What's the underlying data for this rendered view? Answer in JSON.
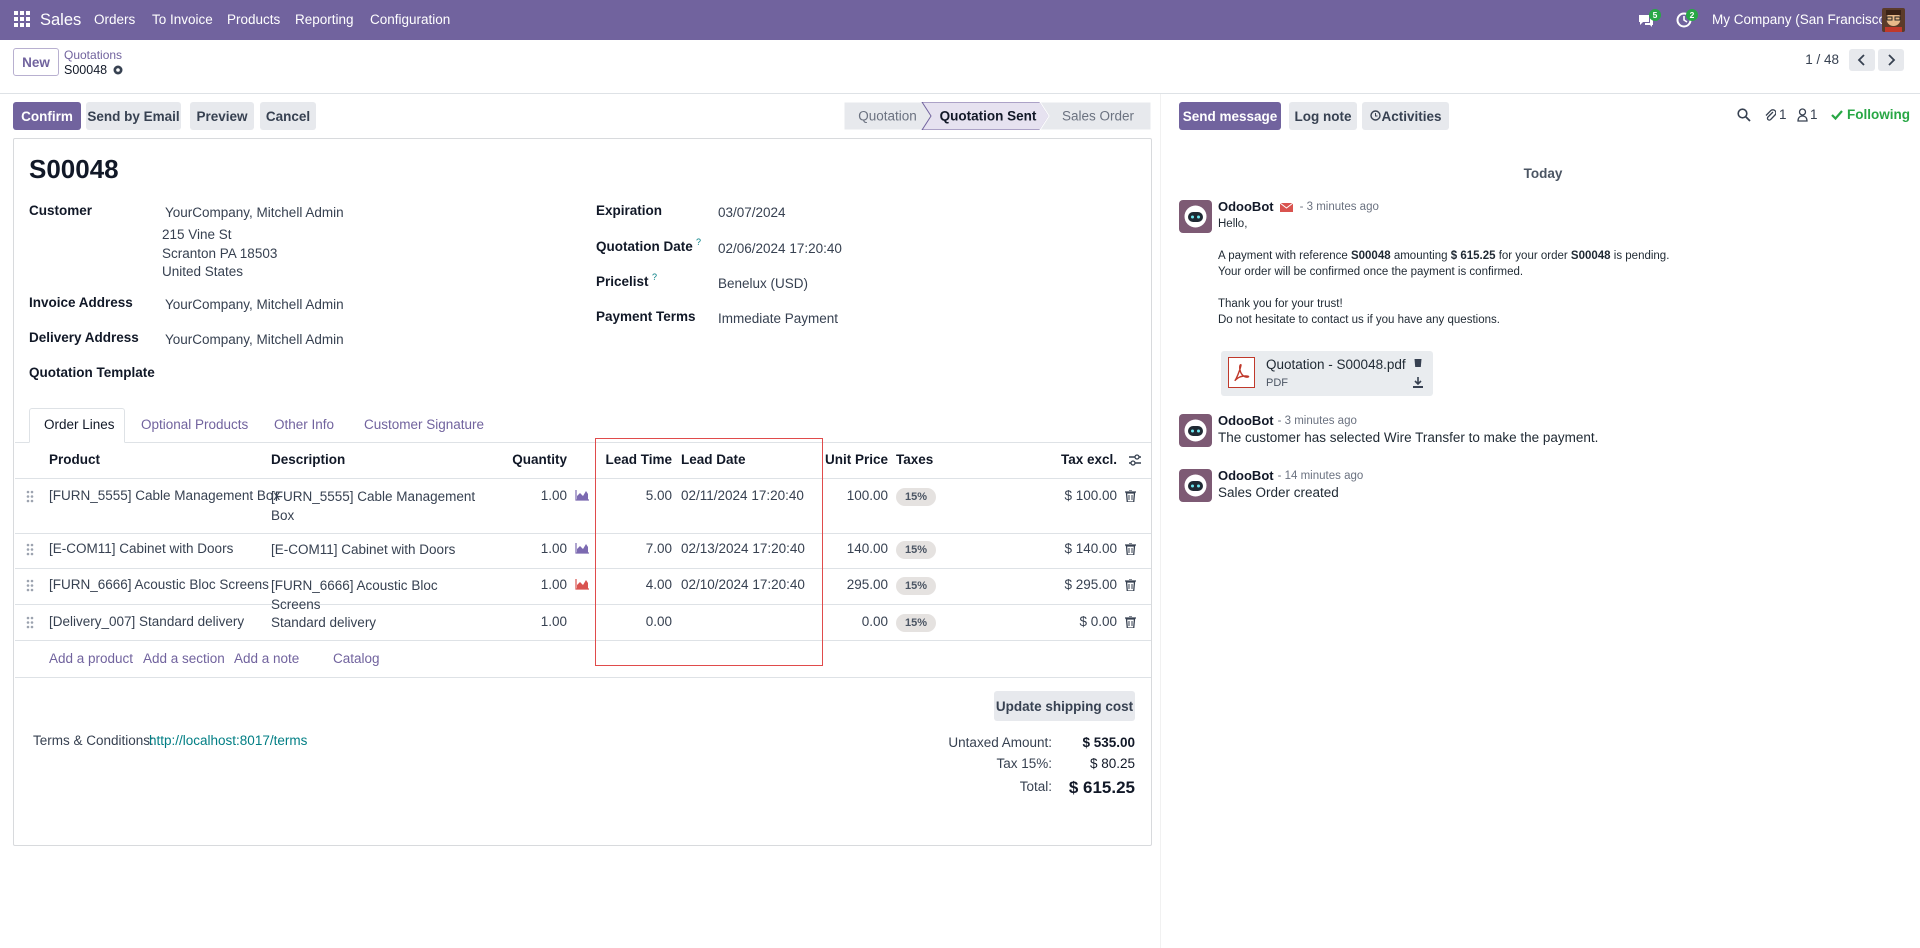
{
  "navbar": {
    "app": "Sales",
    "menu": [
      "Orders",
      "To Invoice",
      "Products",
      "Reporting",
      "Configuration"
    ],
    "message_badge": "5",
    "activity_badge": "2",
    "company": "My Company (San Francisco)"
  },
  "control_panel": {
    "new_button": "New",
    "breadcrumb": "Quotations",
    "record": "S00048",
    "pager": "1 / 48"
  },
  "action_buttons": [
    "Confirm",
    "Send by Email",
    "Preview",
    "Cancel"
  ],
  "statusbar": {
    "stages": [
      "Quotation",
      "Quotation Sent",
      "Sales Order"
    ],
    "current": 1
  },
  "form": {
    "name": "S00048",
    "customer": {
      "label": "Customer",
      "lines": [
        "YourCompany, Mitchell Admin",
        "215 Vine St",
        "Scranton PA 18503",
        "United States"
      ]
    },
    "invoice_address": {
      "label": "Invoice Address",
      "value": "YourCompany, Mitchell Admin"
    },
    "delivery_address": {
      "label": "Delivery Address",
      "value": "YourCompany, Mitchell Admin"
    },
    "quotation_template": {
      "label": "Quotation Template"
    },
    "expiration": {
      "label": "Expiration",
      "value": "03/07/2024"
    },
    "quotation_date": {
      "label": "Quotation Date",
      "help": "?",
      "value": "02/06/2024 17:20:40"
    },
    "pricelist": {
      "label": "Pricelist",
      "help": "?",
      "value": "Benelux (USD)"
    },
    "payment_terms": {
      "label": "Payment Terms",
      "value": "Immediate Payment"
    }
  },
  "tabs": {
    "items": [
      "Order Lines",
      "Optional Products",
      "Other Info",
      "Customer Signature"
    ],
    "active": 0
  },
  "order_lines": {
    "columns": [
      "Product",
      "Description",
      "Quantity",
      "Lead Time",
      "Lead Date",
      "Unit Price",
      "Taxes",
      "Tax excl."
    ],
    "rows": [
      [
        "[FURN_5555] Cable Management Box",
        "[FURN_5555] Cable Management Box",
        "1.00",
        "5.00",
        "02/11/2024 17:20:40",
        "100.00",
        "15%",
        "$ 100.00"
      ],
      [
        "[E-COM11] Cabinet with Doors",
        "[E-COM11] Cabinet with Doors",
        "1.00",
        "7.00",
        "02/13/2024 17:20:40",
        "140.00",
        "15%",
        "$ 140.00"
      ],
      [
        "[FURN_6666] Acoustic Bloc Screens",
        "[FURN_6666] Acoustic Bloc Screens",
        "1.00",
        "4.00",
        "02/10/2024 17:20:40",
        "295.00",
        "15%",
        "$ 295.00"
      ],
      [
        "[Delivery_007] Standard delivery",
        "Standard delivery",
        "1.00",
        "0.00",
        null,
        "0.00",
        "15%",
        "$ 0.00"
      ]
    ],
    "forecast_color": [
      "#7c6ab1",
      "#7c6ab1",
      "#d9534f",
      null
    ],
    "add_links": [
      "Add a product",
      "Add a section",
      "Add a note",
      "Catalog"
    ]
  },
  "shipping_button": "Update shipping cost",
  "terms": {
    "label": "Terms & Conditions:",
    "link": "http://localhost:8017/terms"
  },
  "totals": [
    {
      "label": "Untaxed Amount:",
      "value": "$ 535.00"
    },
    {
      "label": "Tax 15%:",
      "value": "$ 80.25"
    },
    {
      "label": "Total:",
      "value": "$ 615.25"
    }
  ],
  "chatter": {
    "buttons": [
      "Send message",
      "Log note",
      "Activities"
    ],
    "attachments_count": "1",
    "followers_count": "1",
    "follow_state": "Following",
    "date_separator": "Today",
    "messages": [
      {
        "author": "OdooBot",
        "via_email": true,
        "time": "- 3 minutes ago",
        "paragraphs": [
          [
            [
              {
                "text": "Hello,"
              }
            ]
          ],
          [
            [
              {
                "text": "A payment with reference "
              },
              {
                "text": "S00048",
                "bold": true
              },
              {
                "text": " amounting "
              },
              {
                "text": "$ 615.25",
                "bold": true
              },
              {
                "text": " for your order "
              },
              {
                "text": "S00048",
                "bold": true
              },
              {
                "text": " is pending."
              }
            ],
            [
              {
                "text": "Your order will be confirmed once the payment is confirmed."
              }
            ]
          ],
          [
            [
              {
                "text": "Thank you for your trust!"
              }
            ],
            [
              {
                "text": "Do not hesitate to contact us if you have any questions."
              }
            ]
          ]
        ],
        "attachment": {
          "name": "Quotation - S00048.pdf",
          "type": "PDF"
        }
      },
      {
        "author": "OdooBot",
        "time": "- 3 minutes ago",
        "paragraphs": [
          [
            [
              {
                "text": "The customer has selected Wire Transfer to make the payment."
              }
            ]
          ]
        ]
      },
      {
        "author": "OdooBot",
        "time": "- 14 minutes ago",
        "paragraphs": [
          [
            [
              {
                "text": "Sales Order created"
              }
            ]
          ]
        ]
      }
    ]
  }
}
